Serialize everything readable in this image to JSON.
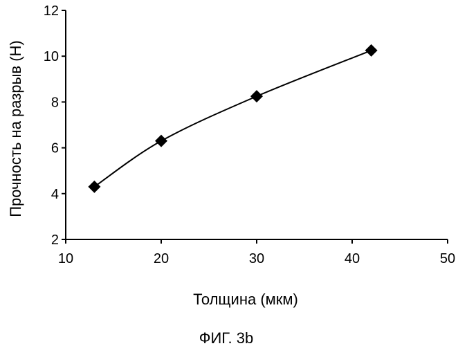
{
  "chart_data": {
    "type": "line",
    "title": "",
    "xlabel": "Толщина (мкм)",
    "ylabel": "Прочность на разрыв (Н)",
    "xlim": [
      10,
      50
    ],
    "ylim": [
      2,
      12
    ],
    "xticks": [
      10,
      20,
      30,
      40,
      50
    ],
    "yticks": [
      2,
      4,
      6,
      8,
      10,
      12
    ],
    "grid": false,
    "marker": "diamond",
    "series": [
      {
        "x": [
          13,
          20,
          30,
          42
        ],
        "y": [
          4.3,
          6.3,
          8.25,
          10.25
        ]
      }
    ]
  },
  "figure_caption": "ФИГ. 3b"
}
